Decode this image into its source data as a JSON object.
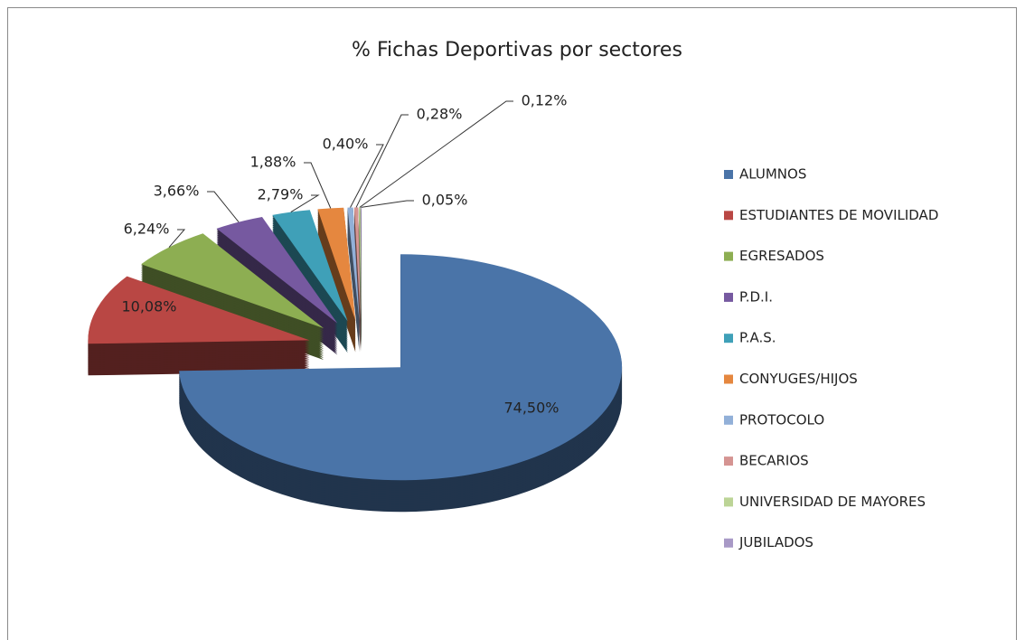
{
  "chart_data": {
    "type": "pie",
    "title": "% Fichas Deportivas por sectores",
    "categories": [
      "ALUMNOS",
      "ESTUDIANTES DE MOVILIDAD",
      "EGRESADOS",
      "P.D.I.",
      "P.A.S.",
      "CONYUGES/HIJOS",
      "PROTOCOLO",
      "BECARIOS",
      "UNIVERSIDAD DE MAYORES",
      "JUBILADOS"
    ],
    "values": [
      74.5,
      10.08,
      6.24,
      3.66,
      2.79,
      1.88,
      0.4,
      0.28,
      0.12,
      0.05
    ],
    "value_labels": [
      "74,50%",
      "10,08%",
      "6,24%",
      "3,66%",
      "2,79%",
      "1,88%",
      "0,40%",
      "0,28%",
      "0,12%",
      "0,05%"
    ],
    "colors": [
      "#4a74a8",
      "#b94744",
      "#8dae52",
      "#7659a0",
      "#3fa0b8",
      "#e5873f",
      "#92b0d8",
      "#d59492",
      "#bcd496",
      "#a899c6"
    ],
    "legend": "right"
  }
}
